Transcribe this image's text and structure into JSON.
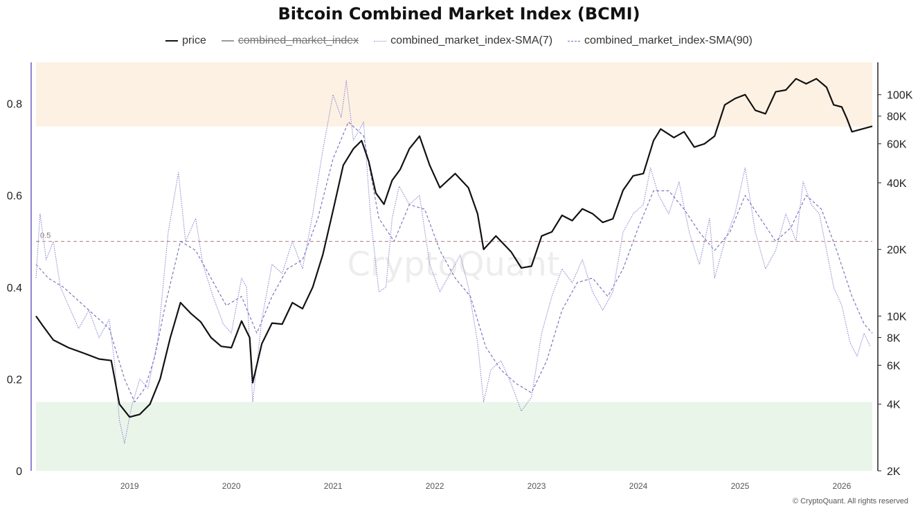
{
  "title": "Bitcoin Combined Market Index (BCMI)",
  "legend": [
    {
      "name": "price",
      "style": "solid",
      "color": "#111111",
      "hidden": false
    },
    {
      "name": "combined_market_index",
      "style": "solid",
      "color": "#9a9a9a",
      "hidden": true
    },
    {
      "name": "combined_market_index-SMA(7)",
      "style": "dotted",
      "color": "#8a86cf",
      "hidden": false
    },
    {
      "name": "combined_market_index-SMA(90)",
      "style": "dashed",
      "color": "#6f6bb8",
      "hidden": false
    }
  ],
  "watermark": "CryptoQuant",
  "copyright": "© CryptoQuant. All rights reserved",
  "colors": {
    "price": "#111111",
    "sma7": "#8a86cf",
    "sma90": "#6f6bb8",
    "upper_band": "#fdf1e4",
    "lower_band": "#eaf5ea",
    "ref_line": "#b08a8a",
    "left_axis": "#8b86d0"
  },
  "chart_data": {
    "type": "line",
    "x_range": [
      2018.08,
      2026.3
    ],
    "x_ticks": [
      2019,
      2020,
      2021,
      2022,
      2023,
      2024,
      2025,
      2026
    ],
    "x_tick_labels": [
      "2019",
      "2020",
      "2021",
      "2022",
      "2023",
      "2024",
      "2025",
      "2026"
    ],
    "y_left": {
      "range": [
        0,
        0.89
      ],
      "ticks": [
        0,
        0.2,
        0.4,
        0.6,
        0.8
      ],
      "tick_labels": [
        "0",
        "0.2",
        "0.4",
        "0.6",
        "0.8"
      ]
    },
    "y_right": {
      "scale": "log",
      "range": [
        2000,
        140000
      ],
      "ticks": [
        2000,
        4000,
        6000,
        8000,
        10000,
        20000,
        40000,
        60000,
        80000,
        100000
      ],
      "tick_labels": [
        "2K",
        "4K",
        "6K",
        "8K",
        "10K",
        "20K",
        "40K",
        "60K",
        "80K",
        "100K"
      ]
    },
    "bands": [
      {
        "from": 0.75,
        "to": 0.89,
        "color": "upper_band"
      },
      {
        "from": 0,
        "to": 0.15,
        "color": "lower_band"
      }
    ],
    "reference_line": {
      "y": 0.5,
      "label": "0.5"
    },
    "series": [
      {
        "name": "price",
        "axis": "right",
        "points": [
          [
            2018.08,
            10000
          ],
          [
            2018.15,
            9000
          ],
          [
            2018.25,
            7800
          ],
          [
            2018.4,
            7200
          ],
          [
            2018.55,
            6800
          ],
          [
            2018.7,
            6400
          ],
          [
            2018.82,
            6300
          ],
          [
            2018.9,
            4000
          ],
          [
            2019.0,
            3500
          ],
          [
            2019.1,
            3600
          ],
          [
            2019.2,
            4000
          ],
          [
            2019.3,
            5200
          ],
          [
            2019.4,
            8000
          ],
          [
            2019.5,
            11500
          ],
          [
            2019.6,
            10300
          ],
          [
            2019.7,
            9400
          ],
          [
            2019.8,
            8000
          ],
          [
            2019.9,
            7300
          ],
          [
            2020.0,
            7200
          ],
          [
            2020.1,
            9500
          ],
          [
            2020.18,
            8000
          ],
          [
            2020.21,
            5000
          ],
          [
            2020.3,
            7500
          ],
          [
            2020.4,
            9300
          ],
          [
            2020.5,
            9200
          ],
          [
            2020.6,
            11500
          ],
          [
            2020.7,
            10800
          ],
          [
            2020.8,
            13500
          ],
          [
            2020.9,
            19000
          ],
          [
            2021.0,
            30000
          ],
          [
            2021.1,
            48000
          ],
          [
            2021.2,
            57000
          ],
          [
            2021.28,
            62000
          ],
          [
            2021.35,
            50000
          ],
          [
            2021.42,
            36000
          ],
          [
            2021.5,
            32000
          ],
          [
            2021.58,
            41000
          ],
          [
            2021.66,
            46000
          ],
          [
            2021.75,
            57000
          ],
          [
            2021.85,
            65000
          ],
          [
            2021.95,
            48000
          ],
          [
            2022.05,
            38000
          ],
          [
            2022.2,
            44000
          ],
          [
            2022.33,
            38000
          ],
          [
            2022.42,
            29000
          ],
          [
            2022.48,
            20000
          ],
          [
            2022.6,
            23000
          ],
          [
            2022.75,
            19500
          ],
          [
            2022.85,
            16500
          ],
          [
            2022.95,
            16800
          ],
          [
            2023.05,
            23000
          ],
          [
            2023.15,
            24000
          ],
          [
            2023.25,
            28500
          ],
          [
            2023.35,
            27000
          ],
          [
            2023.45,
            30500
          ],
          [
            2023.55,
            29000
          ],
          [
            2023.65,
            26500
          ],
          [
            2023.75,
            27500
          ],
          [
            2023.85,
            37000
          ],
          [
            2023.95,
            43000
          ],
          [
            2024.05,
            44000
          ],
          [
            2024.15,
            62000
          ],
          [
            2024.22,
            70000
          ],
          [
            2024.35,
            64000
          ],
          [
            2024.45,
            68000
          ],
          [
            2024.55,
            58000
          ],
          [
            2024.65,
            60000
          ],
          [
            2024.75,
            65000
          ],
          [
            2024.85,
            90000
          ],
          [
            2024.95,
            96000
          ],
          [
            2025.05,
            100000
          ],
          [
            2025.15,
            85000
          ],
          [
            2025.25,
            82000
          ],
          [
            2025.35,
            103000
          ],
          [
            2025.45,
            105000
          ],
          [
            2025.55,
            118000
          ],
          [
            2025.65,
            112000
          ],
          [
            2025.75,
            118000
          ],
          [
            2025.85,
            108000
          ],
          [
            2025.92,
            90000
          ],
          [
            2026.0,
            88000
          ],
          [
            2026.05,
            78000
          ],
          [
            2026.1,
            68000
          ],
          [
            2026.2,
            70000
          ],
          [
            2026.3,
            72000
          ]
        ]
      },
      {
        "name": "combined_market_index-SMA(7)",
        "axis": "left",
        "points": [
          [
            2018.08,
            0.42
          ],
          [
            2018.12,
            0.56
          ],
          [
            2018.18,
            0.46
          ],
          [
            2018.25,
            0.5
          ],
          [
            2018.32,
            0.4
          ],
          [
            2018.4,
            0.36
          ],
          [
            2018.5,
            0.31
          ],
          [
            2018.6,
            0.35
          ],
          [
            2018.7,
            0.29
          ],
          [
            2018.8,
            0.33
          ],
          [
            2018.85,
            0.24
          ],
          [
            2018.9,
            0.11
          ],
          [
            2018.95,
            0.06
          ],
          [
            2019.02,
            0.14
          ],
          [
            2019.1,
            0.2
          ],
          [
            2019.18,
            0.18
          ],
          [
            2019.28,
            0.29
          ],
          [
            2019.38,
            0.52
          ],
          [
            2019.48,
            0.65
          ],
          [
            2019.55,
            0.5
          ],
          [
            2019.65,
            0.55
          ],
          [
            2019.72,
            0.45
          ],
          [
            2019.82,
            0.38
          ],
          [
            2019.92,
            0.32
          ],
          [
            2020.0,
            0.3
          ],
          [
            2020.1,
            0.42
          ],
          [
            2020.15,
            0.4
          ],
          [
            2020.21,
            0.15
          ],
          [
            2020.3,
            0.33
          ],
          [
            2020.4,
            0.45
          ],
          [
            2020.5,
            0.43
          ],
          [
            2020.6,
            0.5
          ],
          [
            2020.7,
            0.44
          ],
          [
            2020.8,
            0.56
          ],
          [
            2020.9,
            0.7
          ],
          [
            2021.0,
            0.82
          ],
          [
            2021.08,
            0.77
          ],
          [
            2021.13,
            0.85
          ],
          [
            2021.2,
            0.72
          ],
          [
            2021.3,
            0.76
          ],
          [
            2021.37,
            0.55
          ],
          [
            2021.45,
            0.39
          ],
          [
            2021.52,
            0.4
          ],
          [
            2021.58,
            0.55
          ],
          [
            2021.65,
            0.62
          ],
          [
            2021.75,
            0.58
          ],
          [
            2021.85,
            0.6
          ],
          [
            2021.95,
            0.45
          ],
          [
            2022.05,
            0.39
          ],
          [
            2022.15,
            0.43
          ],
          [
            2022.25,
            0.47
          ],
          [
            2022.33,
            0.4
          ],
          [
            2022.42,
            0.28
          ],
          [
            2022.48,
            0.15
          ],
          [
            2022.55,
            0.22
          ],
          [
            2022.65,
            0.24
          ],
          [
            2022.75,
            0.19
          ],
          [
            2022.85,
            0.13
          ],
          [
            2022.95,
            0.16
          ],
          [
            2023.05,
            0.3
          ],
          [
            2023.15,
            0.38
          ],
          [
            2023.25,
            0.44
          ],
          [
            2023.35,
            0.41
          ],
          [
            2023.45,
            0.46
          ],
          [
            2023.55,
            0.39
          ],
          [
            2023.65,
            0.35
          ],
          [
            2023.75,
            0.39
          ],
          [
            2023.85,
            0.52
          ],
          [
            2023.95,
            0.56
          ],
          [
            2024.05,
            0.58
          ],
          [
            2024.12,
            0.66
          ],
          [
            2024.2,
            0.6
          ],
          [
            2024.3,
            0.56
          ],
          [
            2024.4,
            0.63
          ],
          [
            2024.5,
            0.52
          ],
          [
            2024.6,
            0.45
          ],
          [
            2024.7,
            0.55
          ],
          [
            2024.75,
            0.42
          ],
          [
            2024.85,
            0.5
          ],
          [
            2024.95,
            0.56
          ],
          [
            2025.05,
            0.66
          ],
          [
            2025.15,
            0.52
          ],
          [
            2025.25,
            0.44
          ],
          [
            2025.35,
            0.48
          ],
          [
            2025.45,
            0.56
          ],
          [
            2025.55,
            0.5
          ],
          [
            2025.62,
            0.63
          ],
          [
            2025.7,
            0.58
          ],
          [
            2025.78,
            0.56
          ],
          [
            2025.85,
            0.48
          ],
          [
            2025.92,
            0.4
          ],
          [
            2026.0,
            0.36
          ],
          [
            2026.08,
            0.28
          ],
          [
            2026.15,
            0.25
          ],
          [
            2026.22,
            0.3
          ],
          [
            2026.28,
            0.27
          ]
        ]
      },
      {
        "name": "combined_market_index-SMA(90)",
        "axis": "left",
        "points": [
          [
            2018.08,
            0.45
          ],
          [
            2018.2,
            0.42
          ],
          [
            2018.35,
            0.4
          ],
          [
            2018.5,
            0.37
          ],
          [
            2018.65,
            0.34
          ],
          [
            2018.8,
            0.31
          ],
          [
            2018.95,
            0.2
          ],
          [
            2019.05,
            0.15
          ],
          [
            2019.15,
            0.18
          ],
          [
            2019.25,
            0.25
          ],
          [
            2019.35,
            0.36
          ],
          [
            2019.5,
            0.5
          ],
          [
            2019.65,
            0.48
          ],
          [
            2019.8,
            0.42
          ],
          [
            2019.95,
            0.36
          ],
          [
            2020.1,
            0.38
          ],
          [
            2020.25,
            0.3
          ],
          [
            2020.4,
            0.38
          ],
          [
            2020.55,
            0.44
          ],
          [
            2020.7,
            0.46
          ],
          [
            2020.85,
            0.55
          ],
          [
            2021.0,
            0.68
          ],
          [
            2021.15,
            0.76
          ],
          [
            2021.3,
            0.73
          ],
          [
            2021.45,
            0.55
          ],
          [
            2021.6,
            0.5
          ],
          [
            2021.75,
            0.58
          ],
          [
            2021.9,
            0.57
          ],
          [
            2022.05,
            0.48
          ],
          [
            2022.2,
            0.42
          ],
          [
            2022.35,
            0.38
          ],
          [
            2022.5,
            0.27
          ],
          [
            2022.65,
            0.22
          ],
          [
            2022.8,
            0.19
          ],
          [
            2022.95,
            0.17
          ],
          [
            2023.1,
            0.24
          ],
          [
            2023.25,
            0.35
          ],
          [
            2023.4,
            0.41
          ],
          [
            2023.55,
            0.42
          ],
          [
            2023.7,
            0.38
          ],
          [
            2023.85,
            0.44
          ],
          [
            2024.0,
            0.53
          ],
          [
            2024.15,
            0.61
          ],
          [
            2024.3,
            0.61
          ],
          [
            2024.45,
            0.57
          ],
          [
            2024.6,
            0.52
          ],
          [
            2024.75,
            0.48
          ],
          [
            2024.9,
            0.52
          ],
          [
            2025.05,
            0.6
          ],
          [
            2025.2,
            0.55
          ],
          [
            2025.35,
            0.5
          ],
          [
            2025.5,
            0.53
          ],
          [
            2025.65,
            0.6
          ],
          [
            2025.8,
            0.57
          ],
          [
            2025.95,
            0.48
          ],
          [
            2026.1,
            0.38
          ],
          [
            2026.22,
            0.32
          ],
          [
            2026.3,
            0.3
          ]
        ]
      }
    ]
  }
}
